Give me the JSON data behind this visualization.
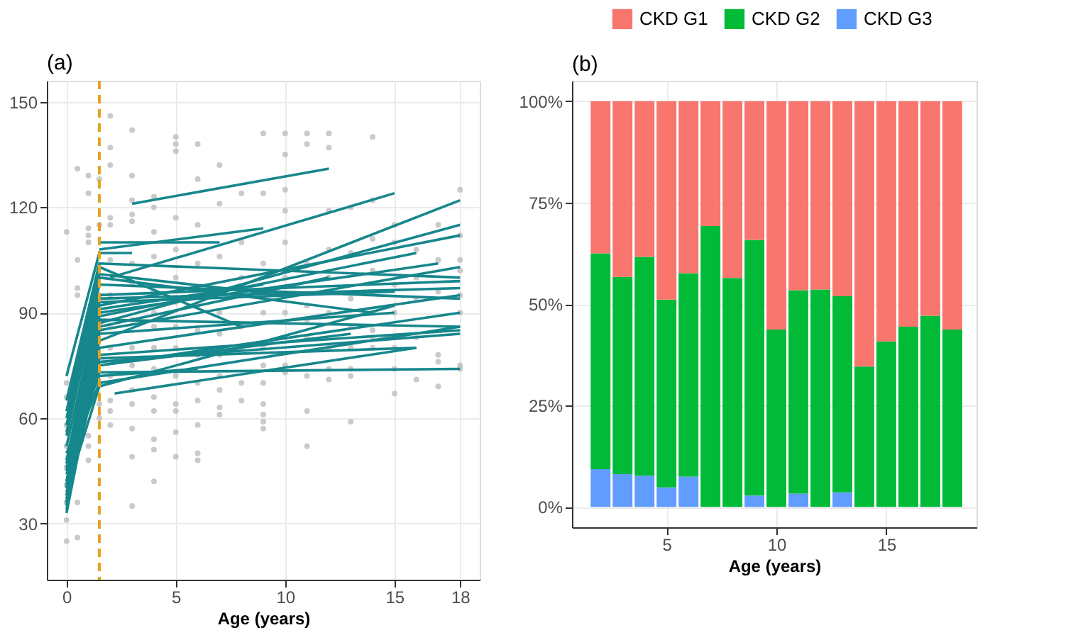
{
  "chart_data": [
    {
      "type": "line",
      "title": "(a)",
      "xlabel": "Age (years)",
      "xlim": [
        -0.9,
        18.9
      ],
      "xticks": [
        0,
        5,
        10,
        15,
        18
      ],
      "ylim": [
        14,
        156
      ],
      "yticks": [
        30,
        60,
        90,
        120,
        150
      ],
      "grid": true,
      "ref_lines": [
        {
          "axis": "x",
          "value": 1.5,
          "color": "#e6a11e",
          "line_style": "dashed"
        }
      ],
      "series": [
        {
          "type": "scatter",
          "color": "#bdbdbd",
          "marker": "circle",
          "x": [
            0,
            0,
            0,
            0,
            0,
            0,
            0,
            0,
            0,
            0,
            0.5,
            0.5,
            0.5,
            0.5,
            0.5,
            0.5,
            1,
            1,
            1,
            1,
            1,
            1,
            1,
            1,
            1.5,
            1.5,
            1.5,
            1.5,
            1.5,
            1.5,
            1.5,
            2,
            2,
            2,
            2,
            2,
            2,
            2,
            2,
            2,
            2,
            2,
            2,
            2,
            3,
            3,
            3,
            3,
            3,
            3,
            3,
            3,
            3,
            3,
            3,
            3,
            3,
            3,
            3,
            3,
            4,
            4,
            4,
            4,
            4,
            4,
            4,
            4,
            4,
            4,
            4,
            4,
            4,
            4,
            5,
            5,
            5,
            5,
            5,
            5,
            5,
            5,
            5,
            5,
            5,
            5,
            5,
            5,
            6,
            6,
            6,
            6,
            6,
            6,
            6,
            6,
            6,
            6,
            6,
            6,
            7,
            7,
            7,
            7,
            7,
            7,
            7,
            7,
            7,
            7,
            8,
            8,
            8,
            8,
            8,
            8,
            8,
            9,
            9,
            9,
            9,
            9,
            9,
            9,
            9,
            9,
            9,
            9,
            10,
            10,
            10,
            10,
            10,
            10,
            10,
            10,
            10,
            10,
            11,
            11,
            11,
            11,
            11,
            11,
            11,
            11,
            11,
            12,
            12,
            12,
            12,
            12,
            12,
            12,
            12,
            12,
            13,
            13,
            13,
            13,
            13,
            13,
            13,
            13,
            14,
            14,
            14,
            14,
            14,
            14,
            14,
            14,
            14,
            15,
            15,
            15,
            15,
            15,
            15,
            15,
            16,
            16,
            16,
            16,
            16,
            17,
            17,
            17,
            17,
            17,
            17,
            18,
            18,
            18,
            18,
            18,
            18,
            18,
            18
          ],
          "values": [
            25,
            31,
            113,
            36,
            41,
            46,
            52,
            58,
            66,
            70,
            26,
            36,
            131,
            105,
            97,
            95,
            48,
            52,
            55,
            124,
            129,
            114,
            112,
            110,
            60,
            64,
            70,
            85,
            95,
            115,
            128,
            58,
            62,
            65,
            72,
            80,
            86,
            95,
            105,
            115,
            117,
            132,
            137,
            146,
            35,
            49,
            57,
            64,
            68,
            75,
            80,
            88,
            93,
            98,
            104,
            116,
            118,
            122,
            129,
            142,
            42,
            51,
            54,
            62,
            66,
            74,
            80,
            86,
            90,
            96,
            106,
            113,
            120,
            123,
            49,
            56,
            62,
            64,
            72,
            80,
            86,
            93,
            100,
            108,
            117,
            136,
            138,
            140,
            48,
            50,
            58,
            65,
            70,
            78,
            85,
            92,
            104,
            115,
            128,
            138,
            61,
            63,
            68,
            72,
            78,
            84,
            90,
            106,
            121,
            132,
            65,
            70,
            80,
            86,
            100,
            110,
            124,
            57,
            59,
            61,
            64,
            70,
            75,
            80,
            90,
            104,
            124,
            141,
            73,
            75,
            83,
            90,
            100,
            110,
            119,
            125,
            135,
            141,
            52,
            62,
            72,
            83,
            88,
            92,
            104,
            138,
            141,
            71,
            74,
            80,
            90,
            100,
            108,
            119,
            137,
            141,
            59,
            72,
            74,
            80,
            86,
            94,
            107,
            120,
            80,
            83,
            85,
            90,
            96,
            102,
            111,
            122,
            140,
            67,
            74,
            80,
            90,
            98,
            110,
            115,
            71,
            83,
            94,
            100,
            108,
            69,
            76,
            78,
            96,
            105,
            115,
            74,
            75,
            90,
            95,
            102,
            105,
            112,
            125
          ]
        },
        {
          "type": "line",
          "color": "#16878c",
          "x": [
            0,
            1.5,
            3
          ],
          "values": [
            72,
            107,
            107
          ]
        },
        {
          "type": "line",
          "color": "#16878c",
          "x": [
            0,
            1.5,
            18
          ],
          "values": [
            65,
            104,
            100
          ]
        },
        {
          "type": "line",
          "color": "#16878c",
          "x": [
            0,
            1.5,
            10
          ],
          "values": [
            58,
            101,
            95
          ]
        },
        {
          "type": "line",
          "color": "#16878c",
          "x": [
            0,
            1.5,
            18
          ],
          "values": [
            55,
            98,
            94
          ]
        },
        {
          "type": "line",
          "color": "#16878c",
          "x": [
            0,
            1.5,
            15
          ],
          "values": [
            52,
            93,
            96
          ]
        },
        {
          "type": "line",
          "color": "#16878c",
          "x": [
            0,
            1.5,
            18
          ],
          "values": [
            48,
            92,
            112
          ]
        },
        {
          "type": "line",
          "color": "#16878c",
          "x": [
            0,
            1.5,
            9
          ],
          "values": [
            45,
            91,
            98
          ]
        },
        {
          "type": "line",
          "color": "#16878c",
          "x": [
            0,
            1.5,
            17
          ],
          "values": [
            42,
            90,
            104
          ]
        },
        {
          "type": "line",
          "color": "#16878c",
          "x": [
            0,
            1.5,
            18
          ],
          "values": [
            40,
            88,
            86
          ]
        },
        {
          "type": "line",
          "color": "#16878c",
          "x": [
            0,
            1.5,
            12
          ],
          "values": [
            38,
            86,
            100
          ]
        },
        {
          "type": "line",
          "color": "#16878c",
          "x": [
            0,
            1.5,
            18
          ],
          "values": [
            36,
            85,
            103
          ]
        },
        {
          "type": "line",
          "color": "#16878c",
          "x": [
            0,
            1.5,
            15
          ],
          "values": [
            35,
            84,
            90
          ]
        },
        {
          "type": "line",
          "color": "#16878c",
          "x": [
            0,
            1.5,
            18
          ],
          "values": [
            33,
            80,
            95
          ]
        },
        {
          "type": "line",
          "color": "#16878c",
          "x": [
            0,
            1.5,
            18
          ],
          "values": [
            40,
            78,
            85
          ]
        },
        {
          "type": "line",
          "color": "#16878c",
          "x": [
            0,
            1.5,
            16
          ],
          "values": [
            38,
            77,
            80
          ]
        },
        {
          "type": "line",
          "color": "#16878c",
          "x": [
            0,
            1.5,
            18
          ],
          "values": [
            36,
            76,
            84
          ]
        },
        {
          "type": "line",
          "color": "#16878c",
          "x": [
            0,
            1.5,
            13
          ],
          "values": [
            42,
            75,
            84
          ]
        },
        {
          "type": "line",
          "color": "#16878c",
          "x": [
            0,
            1.5,
            18
          ],
          "values": [
            44,
            73,
            74
          ]
        },
        {
          "type": "line",
          "color": "#16878c",
          "x": [
            0,
            1.5,
            6
          ],
          "values": [
            50,
            72,
            74
          ]
        },
        {
          "type": "line",
          "color": "#16878c",
          "x": [
            0,
            1.5,
            18
          ],
          "values": [
            46,
            70,
            86
          ]
        },
        {
          "type": "line",
          "color": "#16878c",
          "x": [
            0,
            1.5,
            15
          ],
          "values": [
            39,
            69,
            92
          ]
        },
        {
          "type": "line",
          "color": "#16878c",
          "x": [
            0,
            1.5,
            18
          ],
          "values": [
            56,
            95,
            99
          ]
        },
        {
          "type": "line",
          "color": "#16878c",
          "x": [
            0,
            1.5,
            14
          ],
          "values": [
            60,
            100,
            90
          ]
        },
        {
          "type": "line",
          "color": "#16878c",
          "x": [
            0,
            1.5,
            8
          ],
          "values": [
            62,
            103,
            86
          ]
        },
        {
          "type": "line",
          "color": "#16878c",
          "x": [
            0,
            1.5,
            18
          ],
          "values": [
            34,
            82,
            122
          ]
        },
        {
          "type": "line",
          "color": "#16878c",
          "x": [
            0,
            1.5,
            18
          ],
          "values": [
            37,
            87,
            115
          ]
        },
        {
          "type": "line",
          "color": "#16878c",
          "x": [
            0,
            1.5,
            16
          ],
          "values": [
            41,
            89,
            107
          ]
        },
        {
          "type": "line",
          "color": "#16878c",
          "x": [
            0,
            1.5,
            18
          ],
          "values": [
            47,
            94,
            97
          ]
        },
        {
          "type": "line",
          "color": "#16878c",
          "x": [
            1.5,
            7
          ],
          "values": [
            110,
            110
          ]
        },
        {
          "type": "line",
          "color": "#16878c",
          "x": [
            3,
            12
          ],
          "values": [
            121,
            131
          ]
        },
        {
          "type": "line",
          "color": "#16878c",
          "x": [
            2,
            15
          ],
          "values": [
            100,
            124
          ]
        },
        {
          "type": "line",
          "color": "#16878c",
          "x": [
            2.2,
            16
          ],
          "values": [
            67,
            80
          ]
        },
        {
          "type": "line",
          "color": "#16878c",
          "x": [
            1.5,
            9
          ],
          "values": [
            108,
            114
          ]
        },
        {
          "type": "line",
          "color": "#16878c",
          "x": [
            1.5,
            18
          ],
          "values": [
            75,
            90
          ]
        }
      ]
    },
    {
      "type": "bar",
      "stacked": true,
      "title": "(b)",
      "xlabel": "Age (years)",
      "x": [
        2,
        3,
        4,
        5,
        6,
        7,
        8,
        9,
        10,
        11,
        12,
        13,
        14,
        15,
        16,
        17,
        18
      ],
      "xlim": [
        0.7,
        19.1
      ],
      "xticks": [
        5,
        10,
        15
      ],
      "ylim": [
        -5,
        105
      ],
      "yticks": [
        {
          "value": 0,
          "label": "0%"
        },
        {
          "value": 25,
          "label": "25%"
        },
        {
          "value": 50,
          "label": "50%"
        },
        {
          "value": 75,
          "label": "75%"
        },
        {
          "value": 100,
          "label": "100%"
        }
      ],
      "grid": true,
      "legend": "top",
      "series": [
        {
          "name": "CKD G3",
          "color": "#619cff",
          "values": [
            9.3,
            8.1,
            7.7,
            4.8,
            7.5,
            null,
            null,
            2.8,
            null,
            3.3,
            null,
            3.6,
            null,
            null,
            null,
            null,
            null
          ]
        },
        {
          "name": "CKD G2",
          "color": "#00ba38",
          "values": [
            53.2,
            48.6,
            53.9,
            46.3,
            50.1,
            69.2,
            56.4,
            63.0,
            43.7,
            50.1,
            53.6,
            48.3,
            34.6,
            40.8,
            44.4,
            47.1,
            43.7
          ]
        },
        {
          "name": "CKD G1",
          "color": "#f8766d",
          "values": [
            37.5,
            43.3,
            38.4,
            48.9,
            42.4,
            30.8,
            43.6,
            34.2,
            56.3,
            46.6,
            46.4,
            48.1,
            65.4,
            59.2,
            55.6,
            52.9,
            56.3
          ]
        }
      ]
    }
  ]
}
